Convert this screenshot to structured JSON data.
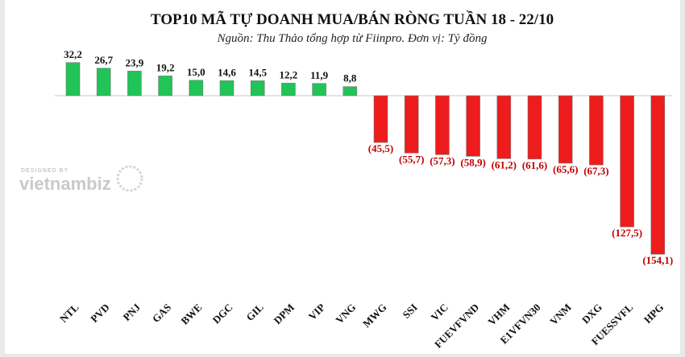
{
  "chart_data": {
    "type": "bar",
    "title": "TOP10 MÃ TỰ DOANH MUA/BÁN RÒNG TUẦN 18 - 22/10",
    "subtitle": "Nguồn: Thu Thảo tổng hợp từ Fiinpro. Đơn vị: Tỷ đồng",
    "categories": [
      "NTL",
      "PVD",
      "PNJ",
      "GAS",
      "BWE",
      "DGC",
      "GIL",
      "DPM",
      "VIP",
      "VNG",
      "MWG",
      "SSI",
      "VIC",
      "FUEVFVND",
      "VHM",
      "E1VFVN30",
      "VNM",
      "DXG",
      "FUESSVFL",
      "HPG"
    ],
    "values": [
      32.2,
      26.7,
      23.9,
      19.2,
      15.0,
      14.6,
      14.5,
      12.2,
      11.9,
      8.8,
      -45.5,
      -55.7,
      -57.3,
      -58.9,
      -61.2,
      -61.6,
      -65.6,
      -67.3,
      -127.5,
      -154.1
    ],
    "value_labels": [
      "32,2",
      "26,7",
      "23,9",
      "19,2",
      "15,0",
      "14,6",
      "14,5",
      "12,2",
      "11,9",
      "8,8",
      "(45,5)",
      "(55,7)",
      "(57,3)",
      "(58,9)",
      "(61,2)",
      "(61,6)",
      "(65,6)",
      "(67,3)",
      "(127,5)",
      "(154,1)"
    ],
    "colors": {
      "positive": "#21c456",
      "negative": "#ee1c1c",
      "positive_label": "#111111",
      "negative_label": "#c00000"
    },
    "grid": false,
    "legend": "none"
  },
  "watermark": {
    "top": "DESIGNED BY",
    "main": "vietnambiz"
  }
}
